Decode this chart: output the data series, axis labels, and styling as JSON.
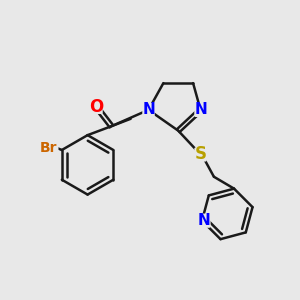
{
  "bg_color": "#e8e8e8",
  "bond_color": "#1a1a1a",
  "bond_width": 1.8,
  "atom_colors": {
    "O": "#ff0000",
    "N": "#0000ff",
    "S": "#b8a000",
    "Br": "#cc6600",
    "C": "#1a1a1a"
  },
  "font_size_atoms": 11,
  "font_size_br": 10,
  "xlim": [
    0,
    10
  ],
  "ylim": [
    0,
    10
  ]
}
